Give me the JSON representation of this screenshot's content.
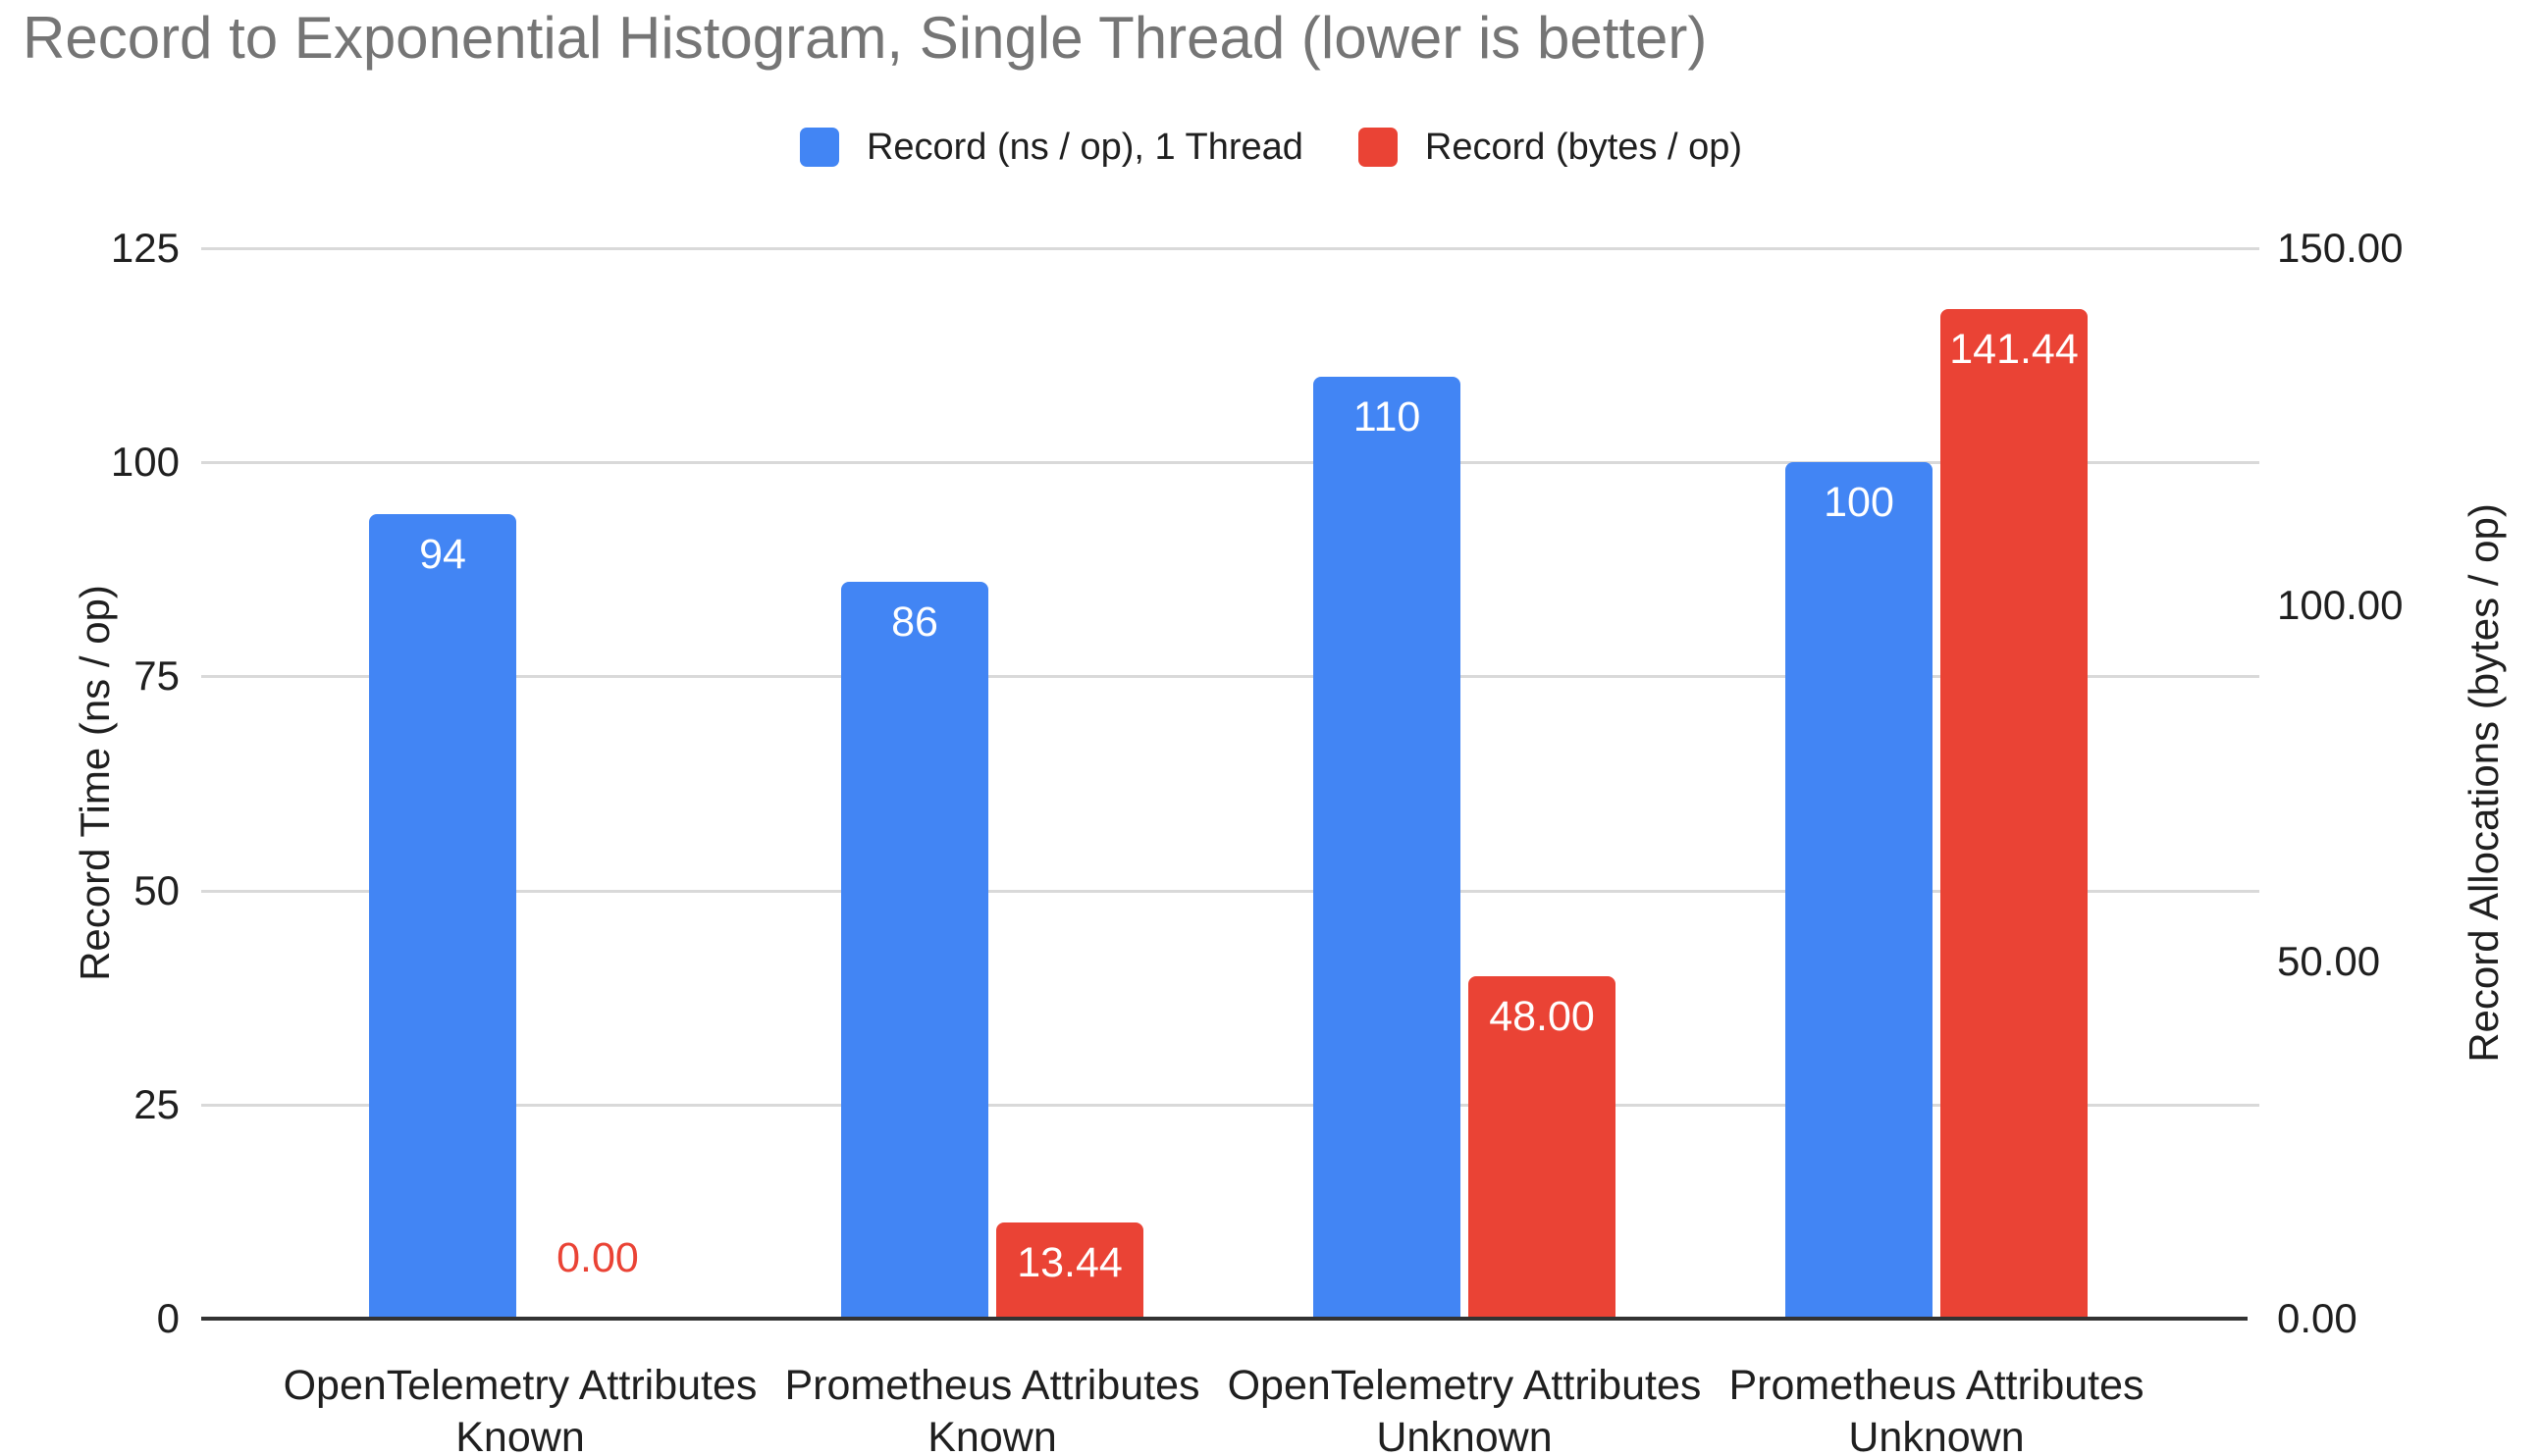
{
  "title": "Record to Exponential Histogram, Single Thread (lower is better)",
  "chart_data": {
    "type": "bar",
    "title": "Record to Exponential Histogram, Single Thread (lower is better)",
    "categories": [
      [
        "OpenTelemetry Attributes",
        "Known"
      ],
      [
        "Prometheus Attributes",
        "Known"
      ],
      [
        "OpenTelemetry Attributes",
        "Unknown"
      ],
      [
        "Prometheus Attributes",
        "Unknown"
      ]
    ],
    "series": [
      {
        "name": "Record (ns / op), 1 Thread",
        "axis": "left",
        "color": "#4285F4",
        "values": [
          94,
          86,
          110,
          100
        ],
        "data_labels": [
          "94",
          "86",
          "110",
          "100"
        ]
      },
      {
        "name": "Record (bytes / op)",
        "axis": "right",
        "color": "#EA4335",
        "values": [
          0,
          13.44,
          48,
          141.44
        ],
        "data_labels": [
          "0.00",
          "13.44",
          "48.00",
          "141.44"
        ]
      }
    ],
    "left_axis": {
      "title": "Record Time (ns / op)",
      "min": 0,
      "max": 125,
      "tick_values": [
        0,
        25,
        50,
        75,
        100,
        125
      ],
      "tick_labels": [
        "0",
        "25",
        "50",
        "75",
        "100",
        "125"
      ]
    },
    "right_axis": {
      "title": "Record Allocations (bytes / op)",
      "min": 0,
      "max": 150,
      "tick_values": [
        0,
        50,
        100,
        150
      ],
      "tick_labels": [
        "0.00",
        "50.00",
        "100.00",
        "150.00"
      ]
    },
    "grid": true,
    "legend_position": "top"
  },
  "colors": {
    "background": "#ffffff",
    "title_text": "#757575",
    "axis_text": "#1f1f1f",
    "gridline": "#d9d9d9",
    "baseline": "#333333",
    "data_label_inside": "#ffffff"
  }
}
